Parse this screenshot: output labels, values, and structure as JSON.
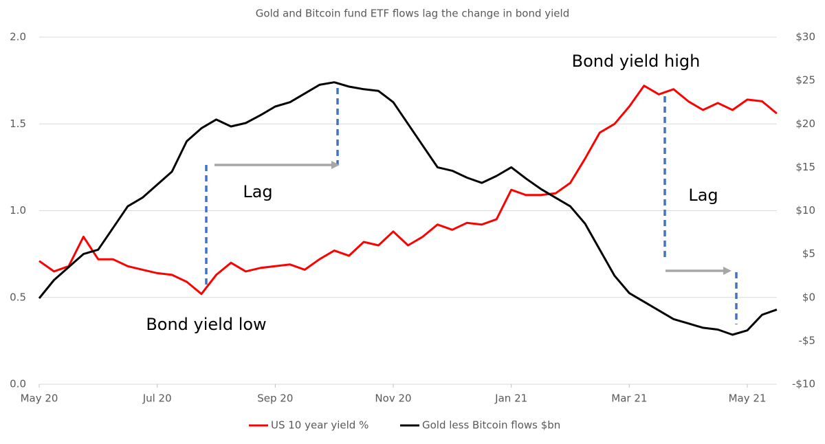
{
  "chart_data": {
    "type": "line",
    "title": "Gold and Bitcoin fund ETF flows lag the change in bond yield",
    "categories": [
      "May 20",
      null,
      null,
      null,
      null,
      null,
      null,
      null,
      "Jul 20",
      null,
      null,
      null,
      null,
      null,
      null,
      null,
      "Sep 20",
      null,
      null,
      null,
      null,
      null,
      null,
      null,
      "Nov 20",
      null,
      null,
      null,
      null,
      null,
      null,
      null,
      "Jan 21",
      null,
      null,
      null,
      null,
      null,
      null,
      null,
      "Mar 21",
      null,
      null,
      null,
      null,
      null,
      null,
      null,
      "May 21",
      null,
      null
    ],
    "series": [
      {
        "name": "US 10 year yield %",
        "color": "#ff0000",
        "values": [
          0.71,
          0.65,
          0.68,
          0.85,
          0.72,
          0.72,
          0.68,
          0.66,
          0.64,
          0.63,
          0.59,
          0.52,
          0.63,
          0.7,
          0.65,
          0.67,
          0.68,
          0.69,
          0.66,
          0.72,
          0.77,
          0.74,
          0.82,
          0.8,
          0.88,
          0.8,
          0.85,
          0.92,
          0.89,
          0.93,
          0.92,
          0.95,
          1.12,
          1.09,
          1.09,
          1.1,
          1.16,
          1.3,
          1.45,
          1.5,
          1.6,
          1.72,
          1.67,
          1.7,
          1.63,
          1.58,
          1.62,
          1.58,
          1.64,
          1.63,
          1.56
        ]
      },
      {
        "name": "Gold less Bitcoin flows $bn",
        "color": "#000000",
        "axis": "y2",
        "values": [
          -0.1,
          2,
          3.5,
          5,
          5.5,
          8,
          10.5,
          11.5,
          13,
          14.5,
          18,
          19.5,
          20.5,
          19.7,
          20.1,
          21,
          22,
          22.5,
          23.5,
          24.5,
          24.8,
          24.3,
          24,
          23.8,
          22.5,
          20,
          17.5,
          15,
          14.6,
          13.8,
          13.2,
          14,
          15,
          13.7,
          12.5,
          11.5,
          10.5,
          8.5,
          5.5,
          2.5,
          0.5,
          -0.5,
          -1.5,
          -2.5,
          -3,
          -3.5,
          -3.7,
          -4.3,
          -3.8,
          -2,
          -1.4
        ]
      }
    ],
    "ylim": [
      0,
      2
    ],
    "yticks": [
      {
        "value": 0,
        "label": "0.0"
      },
      0.5,
      {
        "value": 1,
        "label": "1.0"
      },
      1.5,
      {
        "value": 2,
        "label": "2.0"
      }
    ],
    "y2lim": [
      -10,
      30
    ],
    "y2ticks": [
      {
        "value": -10,
        "label": "-$10"
      },
      {
        "value": -5,
        "label": "-$5"
      },
      {
        "value": 0,
        "label": "$0"
      },
      {
        "value": 5,
        "label": "$5"
      },
      {
        "value": 10,
        "label": "$10"
      },
      {
        "value": 15,
        "label": "$15"
      },
      {
        "value": 20,
        "label": "$20"
      },
      {
        "value": 25,
        "label": "$25"
      },
      {
        "value": 30,
        "label": "$30"
      }
    ],
    "grid": true,
    "legend": "bottom",
    "annotations": [
      "Bond yield high",
      "Lag",
      "Lag",
      "Bond yield low"
    ]
  }
}
